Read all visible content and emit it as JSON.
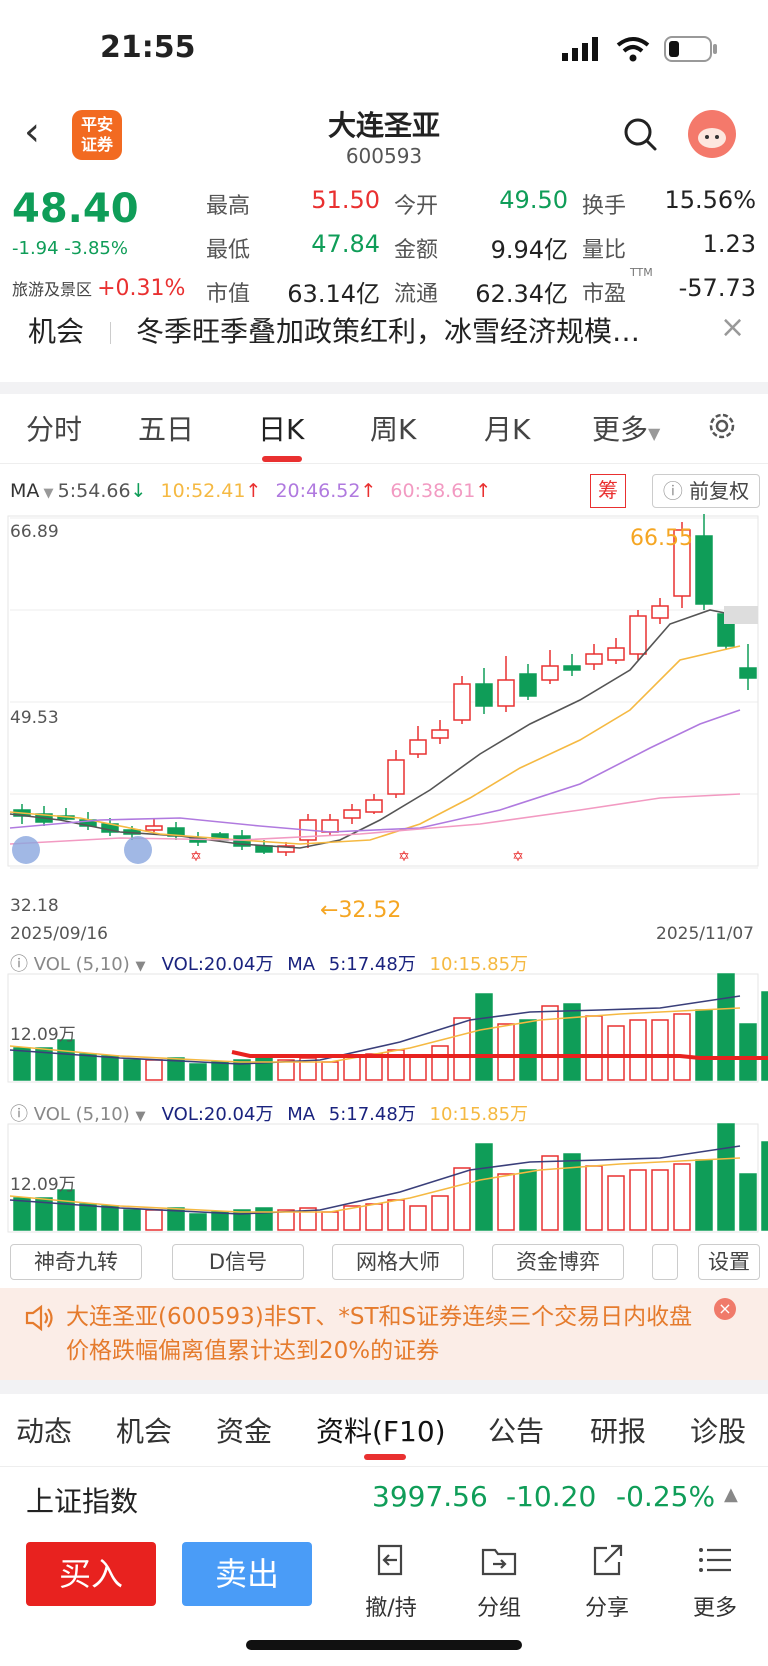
{
  "status": {
    "time": "21:55"
  },
  "header": {
    "logo_text_1": "平安",
    "logo_text_2": "证券",
    "title": "大连圣亚",
    "code": "600593"
  },
  "quote": {
    "price": "48.40",
    "change": "-1.94 -3.85%",
    "sector_name": "旅游及景区",
    "sector_change": "+0.31%",
    "stats": [
      {
        "label": "最高",
        "value": "51.50",
        "color": "#e93030"
      },
      {
        "label": "今开",
        "value": "49.50",
        "color": "#0f9d58"
      },
      {
        "label": "换手",
        "value": "15.56%",
        "color": "#222222"
      },
      {
        "label": "最低",
        "value": "47.84",
        "color": "#0f9d58"
      },
      {
        "label": "金额",
        "value": "9.94亿",
        "color": "#222222"
      },
      {
        "label": "量比",
        "value": "1.23",
        "color": "#222222"
      },
      {
        "label": "市值",
        "value": "63.14亿",
        "color": "#222222"
      },
      {
        "label": "流通",
        "value": "62.34亿",
        "color": "#222222"
      },
      {
        "label": "市盈",
        "value": "-57.73",
        "color": "#222222",
        "sup": "TTM"
      }
    ]
  },
  "news": {
    "label": "机会",
    "text": "冬季旺季叠加政策红利，冰雪经济规模…"
  },
  "period_tabs": [
    "分时",
    "五日",
    "日K",
    "周K",
    "月K",
    "更多"
  ],
  "ma_row": {
    "ma": "MA",
    "ma5": "5:54.66",
    "ma10": "10:52.41",
    "ma20": "20:46.52",
    "ma60": "60:38.61",
    "chou": "筹",
    "fuquan": "前复权"
  },
  "kline": {
    "y_top": "66.89",
    "y_mid": "49.53",
    "y_low": "32.18",
    "high_mark": "66.55",
    "low_mark": "32.52",
    "date_start": "2025/09/16",
    "date_end": "2025/11/07",
    "colors": {
      "up": "#e93030",
      "down": "#0f9d58",
      "ma5": "#555555",
      "ma10": "#f5b942",
      "ma20": "#b07adf",
      "ma60": "#f29ac2"
    }
  },
  "vol_panel_1": {
    "title": "VOL (5,10)",
    "vol": "VOL:20.04万",
    "ma": "MA",
    "ma5": "5:17.48万",
    "ma10": "10:15.85万",
    "y": "12.09万"
  },
  "vol_panel_2": {
    "title": "VOL (5,10)",
    "vol": "VOL:20.04万",
    "ma": "MA",
    "ma5": "5:17.48万",
    "ma10": "10:15.85万",
    "y": "12.09万"
  },
  "indicator_buttons": [
    "神奇九转",
    "D信号",
    "网格大师",
    "资金博弈",
    "设置"
  ],
  "warning": {
    "text": "大连圣亚(600593)非ST、*ST和S证券连续三个交易日内收盘价格跌幅偏离值累计达到20%的证券"
  },
  "bottom_tabs": [
    "动态",
    "机会",
    "资金",
    "资料(F10)",
    "公告",
    "研报",
    "诊股"
  ],
  "index": {
    "name": "上证指数",
    "value": "3997.56",
    "change": "-10.20",
    "pct": "-0.25%"
  },
  "actions": {
    "buy": "买入",
    "sell": "卖出",
    "items": [
      "撤/持",
      "分组",
      "分享",
      "更多"
    ]
  }
}
